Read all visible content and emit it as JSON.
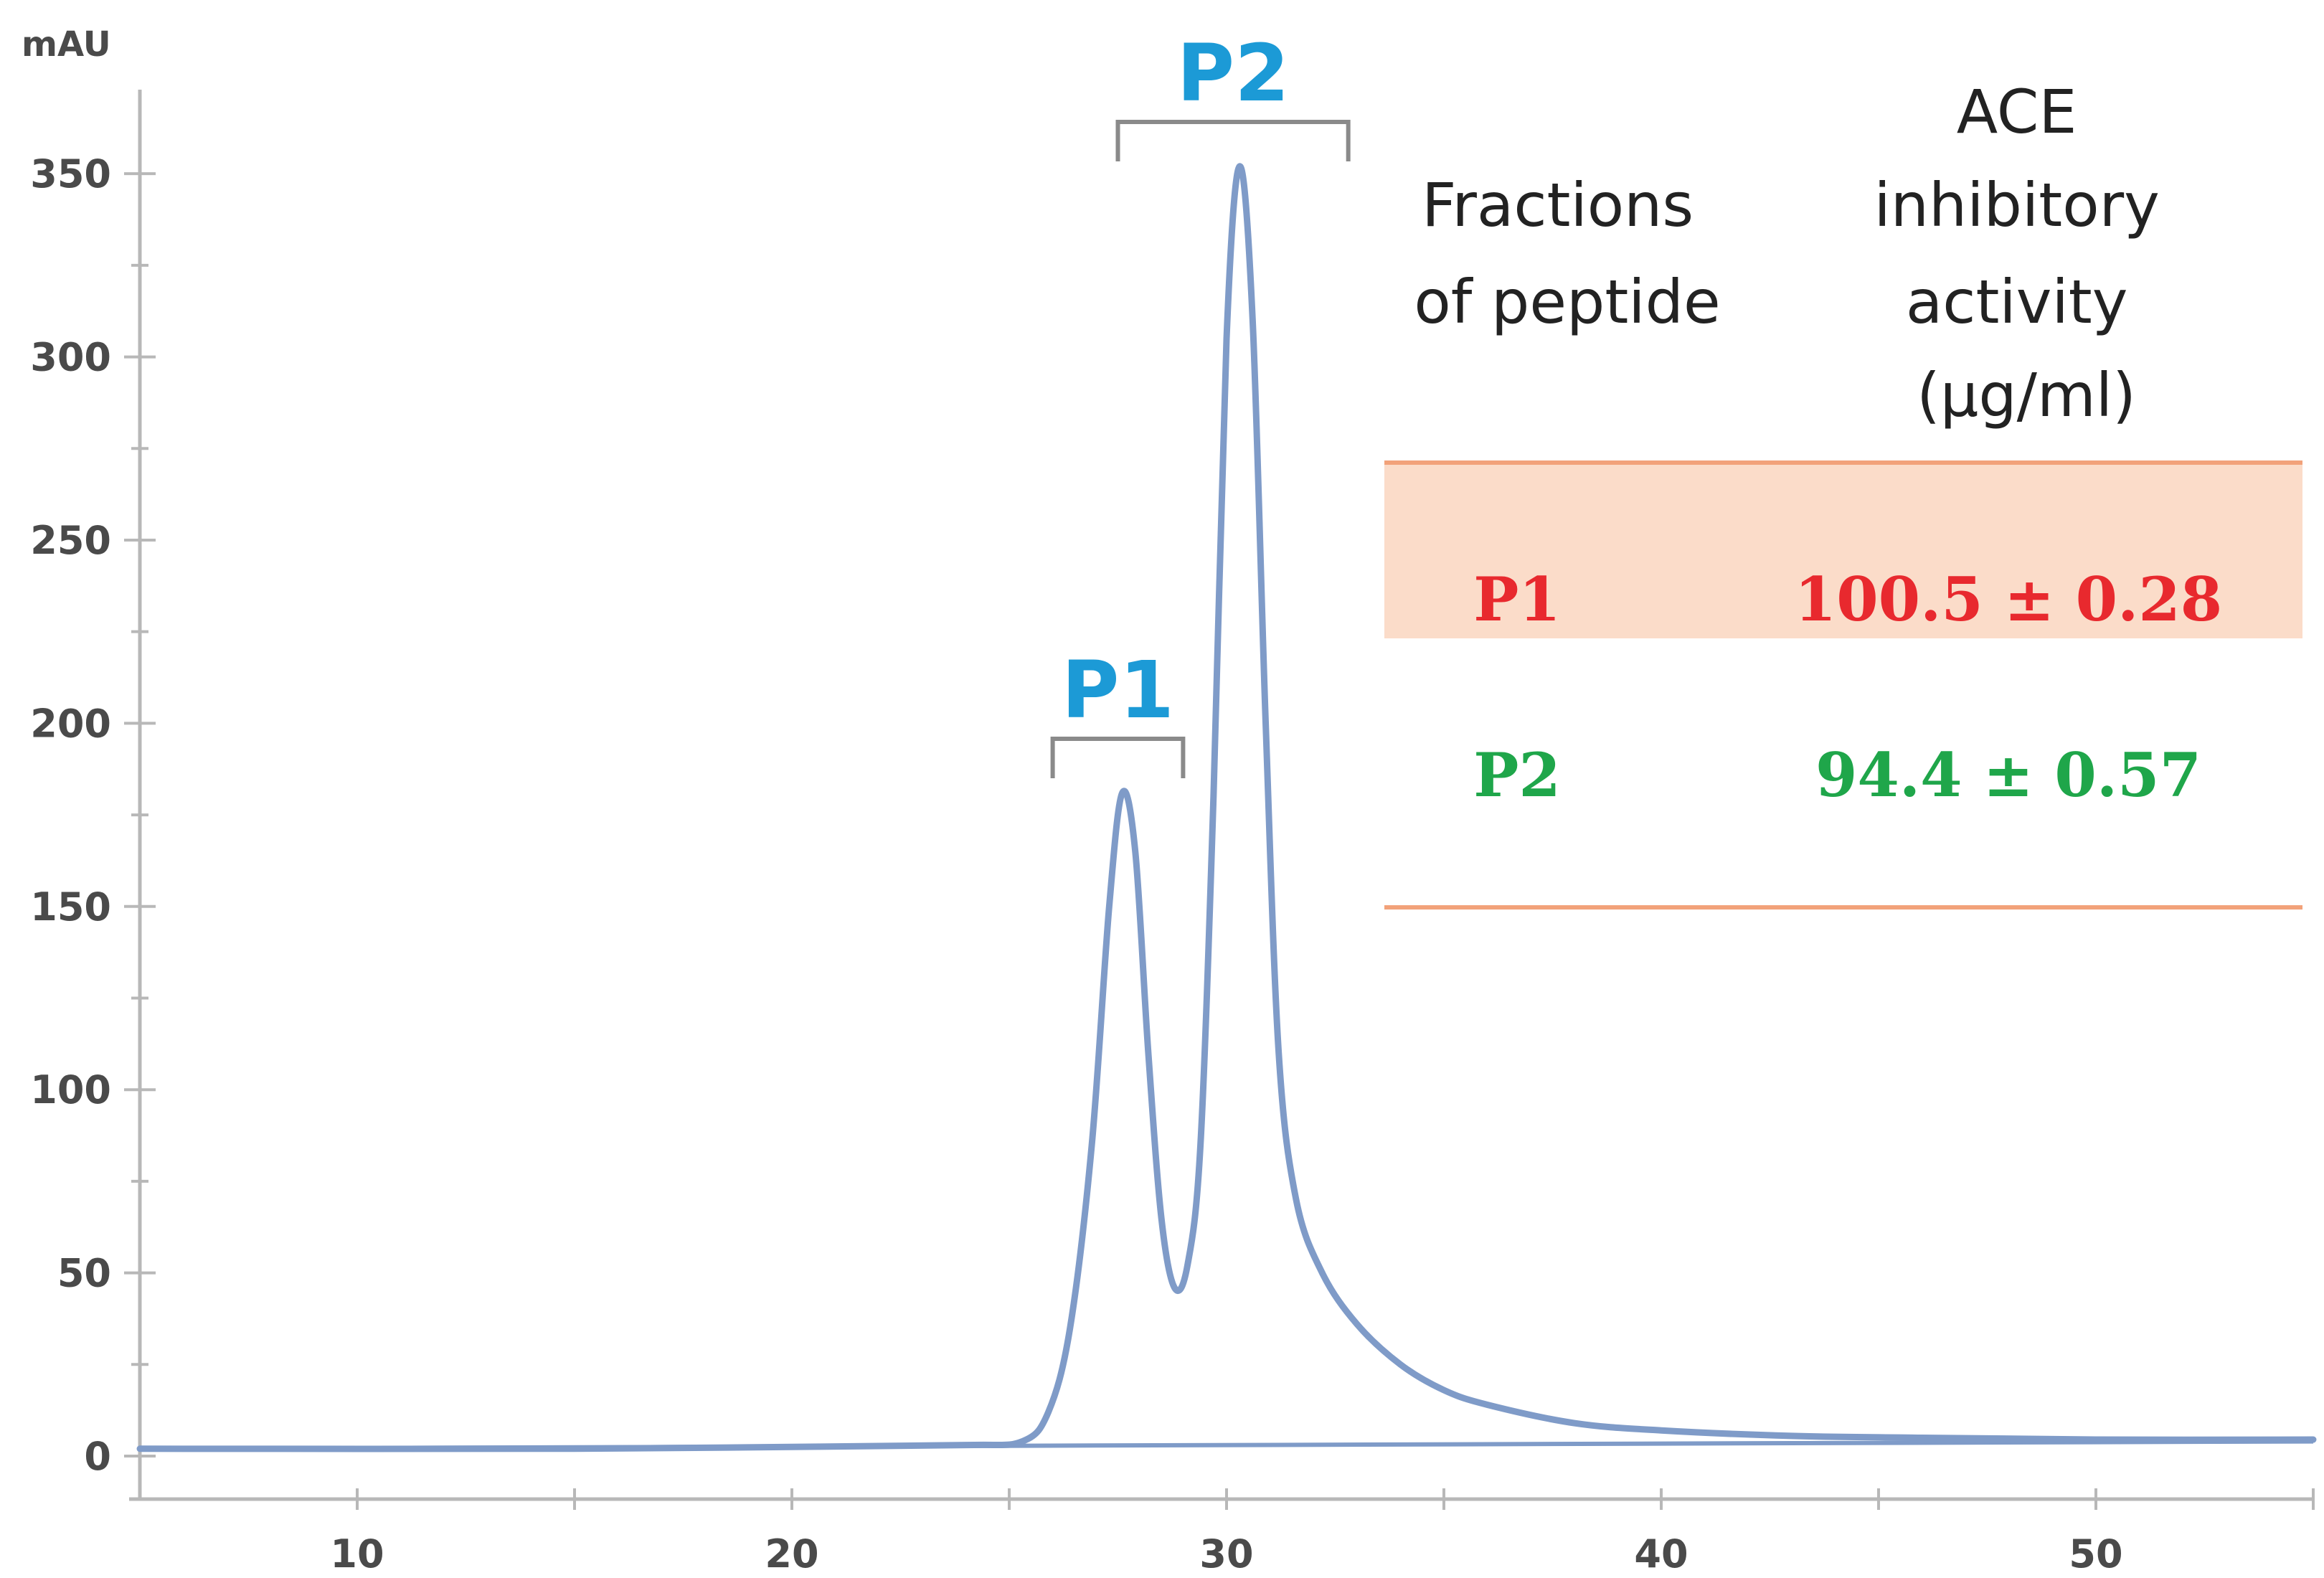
{
  "chart_data": {
    "type": "line",
    "title": "",
    "xlabel": "",
    "ylabel": "mAU",
    "xlim": [
      5,
      55
    ],
    "ylim": [
      0,
      370
    ],
    "x_ticks": [
      10,
      20,
      30,
      40,
      50
    ],
    "y_ticks": [
      0,
      50,
      100,
      150,
      200,
      250,
      300,
      350
    ],
    "series": [
      {
        "name": "chromatogram",
        "color": "#7f9bc8",
        "points": [
          [
            5,
            2
          ],
          [
            15,
            2
          ],
          [
            20,
            2.5
          ],
          [
            24,
            3
          ],
          [
            25.3,
            4
          ],
          [
            25.9,
            12
          ],
          [
            26.4,
            35
          ],
          [
            26.9,
            85
          ],
          [
            27.3,
            150
          ],
          [
            27.6,
            181
          ],
          [
            27.9,
            165
          ],
          [
            28.2,
            110
          ],
          [
            28.5,
            65
          ],
          [
            28.8,
            46
          ],
          [
            29.1,
            52
          ],
          [
            29.4,
            85
          ],
          [
            29.7,
            180
          ],
          [
            30.0,
            305
          ],
          [
            30.3,
            352
          ],
          [
            30.6,
            310
          ],
          [
            30.9,
            200
          ],
          [
            31.2,
            110
          ],
          [
            31.6,
            70
          ],
          [
            32.2,
            50
          ],
          [
            33,
            36
          ],
          [
            34,
            25
          ],
          [
            35,
            18
          ],
          [
            36,
            14
          ],
          [
            38,
            9
          ],
          [
            40,
            7
          ],
          [
            43,
            5.5
          ],
          [
            46,
            5
          ],
          [
            50,
            4.5
          ],
          [
            55,
            4.5
          ]
        ]
      }
    ],
    "baseline": {
      "from": [
        5,
        2
      ],
      "to": [
        55,
        4
      ]
    },
    "annotations": [
      {
        "label": "P1",
        "bracket_x": [
          26,
          29
        ]
      },
      {
        "label": "P2",
        "bracket_x": [
          27.5,
          32.8
        ]
      }
    ]
  },
  "table": {
    "header_col1": [
      "Fractions",
      "of peptide"
    ],
    "header_col2": [
      "ACE",
      "inhibitory",
      "activity",
      "(µg/ml)"
    ],
    "rows": [
      {
        "fraction": "P1",
        "activity": "100.5 ± 0.28",
        "color": "#e8292e",
        "highlight": "#fbdcc9"
      },
      {
        "fraction": "P2",
        "activity": "94.4 ± 0.57",
        "color": "#1fa64a",
        "highlight": ""
      }
    ],
    "rule_color": "#f2a27a"
  }
}
